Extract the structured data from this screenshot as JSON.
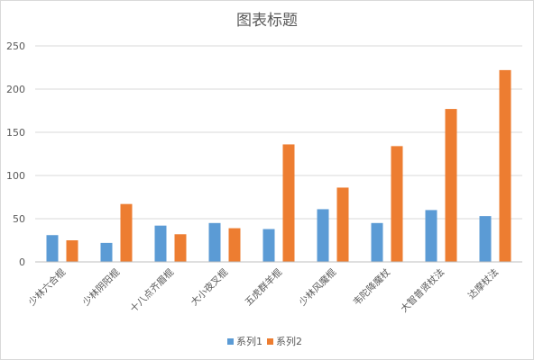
{
  "chart_data": {
    "type": "bar",
    "title": "图表标题",
    "categories": [
      "少林六合棍",
      "少林阴阳棍",
      "十八点齐眉棍",
      "大小夜叉棍",
      "五虎群羊棍",
      "少林风魔棍",
      "韦陀降魔杖",
      "大智普贤杖法",
      "达摩杖法"
    ],
    "series": [
      {
        "name": "系列1",
        "color": "#5b9bd5",
        "values": [
          31,
          22,
          42,
          45,
          38,
          61,
          45,
          60,
          53
        ]
      },
      {
        "name": "系列2",
        "color": "#ed7d31",
        "values": [
          25,
          67,
          32,
          39,
          136,
          86,
          134,
          177,
          222
        ]
      }
    ],
    "ylim": [
      0,
      250
    ],
    "yticks": [
      0,
      50,
      100,
      150,
      200,
      250
    ],
    "grid": true,
    "legend_position": "bottom"
  }
}
